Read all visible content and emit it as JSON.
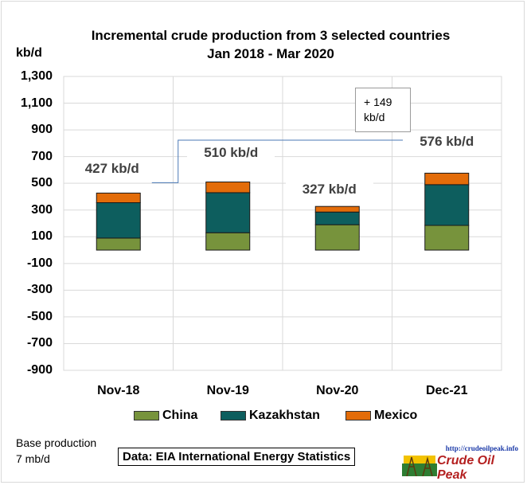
{
  "title_line1": "Incremental crude production from 3 selected countries",
  "title_line2": "Jan 2018 - Mar 2020",
  "unit_label": "kb/d",
  "annotation_line1": "+ 149",
  "annotation_line2": "kb/d",
  "base_line1": "Base production",
  "base_line2": "7 mb/d",
  "source": "Data: EIA International Energy Statistics",
  "logo_url": "http://crudeoilpeak.info",
  "logo_name": "Crude Oil Peak",
  "chart_data": {
    "type": "bar",
    "stacked": true,
    "categories": [
      "Nov-18",
      "Nov-19",
      "Nov-20",
      "Dec-21"
    ],
    "series": [
      {
        "name": "China",
        "color": "#77933c",
        "values": [
          90,
          130,
          190,
          185
        ]
      },
      {
        "name": "Kazakhstan",
        "color": "#0d5e5e",
        "values": [
          265,
          300,
          95,
          305
        ]
      },
      {
        "name": "Mexico",
        "color": "#e36c09",
        "values": [
          72,
          80,
          42,
          86
        ]
      }
    ],
    "totals": [
      427,
      510,
      327,
      576
    ],
    "total_labels": [
      "427 kb/d",
      "510 kb/d",
      "327 kb/d",
      "576 kb/d"
    ],
    "ylim": [
      -900,
      1300
    ],
    "yticks": [
      "1,300",
      "1,100",
      "900",
      "700",
      "500",
      "300",
      "100",
      "-100",
      "-300",
      "-500",
      "-700",
      "-900"
    ],
    "ytick_values": [
      1300,
      1100,
      900,
      700,
      500,
      300,
      100,
      -100,
      -300,
      -500,
      -700,
      -900
    ],
    "grid": true,
    "legend": "bottom"
  }
}
